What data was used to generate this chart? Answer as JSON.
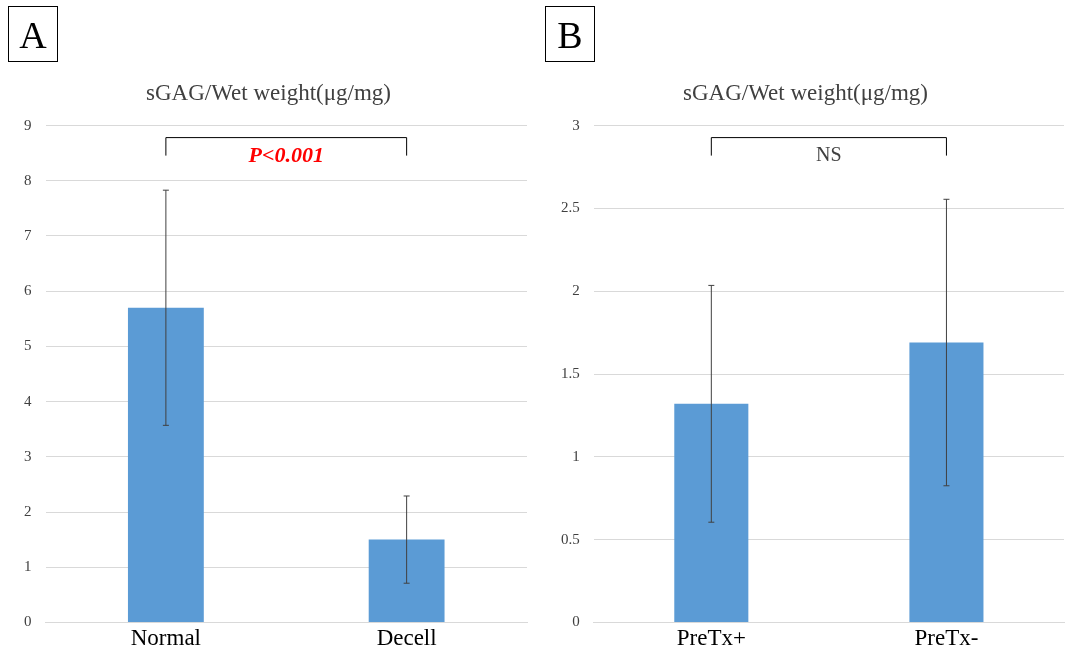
{
  "chart_data": [
    {
      "type": "bar",
      "title": "sGAG/Wet weight(μg/mg)",
      "categories": [
        "Normal",
        "Decell"
      ],
      "values": [
        5.7,
        1.5
      ],
      "errors": [
        2.13,
        0.79
      ],
      "color": "#5b9bd5",
      "ylim": [
        0,
        9
      ],
      "yticks": [
        0,
        1,
        2,
        3,
        4,
        5,
        6,
        7,
        8,
        9
      ],
      "grid": "y",
      "legend": false,
      "annotations": [
        "A",
        "P<0.001"
      ]
    },
    {
      "type": "bar",
      "title": "sGAG/Wet weight(μg/mg)",
      "categories": [
        "PreTx+",
        "PreTx-"
      ],
      "values": [
        1.32,
        1.69
      ],
      "errors": [
        0.715,
        0.865
      ],
      "color": "#5b9bd5",
      "ylim": [
        0,
        3
      ],
      "yticks": [
        0,
        0.5,
        1,
        1.5,
        2,
        2.5,
        3
      ],
      "grid": "y",
      "legend": false,
      "annotations": [
        "B",
        "NS"
      ]
    }
  ]
}
